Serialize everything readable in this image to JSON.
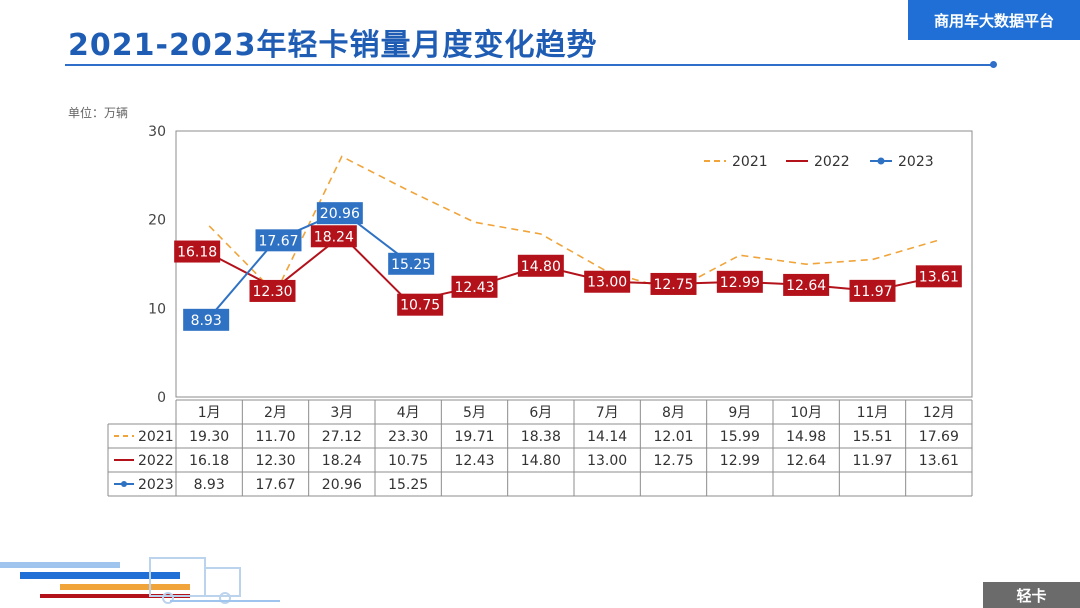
{
  "header": {
    "title": "2021-2023年轻卡销量月度变化趋势",
    "brand": "商用车大数据平台",
    "unit_label": "单位：万辆",
    "corner_label": "轻卡"
  },
  "colors": {
    "s2021": "#f0a43a",
    "s2022": "#b3121b",
    "s2023": "#2f72c4",
    "accent": "#1f5db5"
  },
  "chart_data": {
    "type": "line",
    "title": "",
    "xlabel": "",
    "ylabel": "",
    "ylim": [
      0,
      30
    ],
    "yticks": [
      "0",
      "10",
      "20",
      "30"
    ],
    "categories": [
      "1月",
      "2月",
      "3月",
      "4月",
      "5月",
      "6月",
      "7月",
      "8月",
      "9月",
      "10月",
      "11月",
      "12月"
    ],
    "legend_position": "top-right",
    "grid": false,
    "series": [
      {
        "name": "2021",
        "style": "dashed",
        "values": [
          19.3,
          11.7,
          27.12,
          23.3,
          19.71,
          18.38,
          14.14,
          12.01,
          15.99,
          14.98,
          15.51,
          17.69
        ],
        "labels": [
          "19.30",
          "11.70",
          "27.12",
          "23.30",
          "19.71",
          "18.38",
          "14.14",
          "12.01",
          "15.99",
          "14.98",
          "15.51",
          "17.69"
        ]
      },
      {
        "name": "2022",
        "style": "solid",
        "values": [
          16.18,
          12.3,
          18.24,
          10.75,
          12.43,
          14.8,
          13.0,
          12.75,
          12.99,
          12.64,
          11.97,
          13.61
        ],
        "labels": [
          "16.18",
          "12.30",
          "18.24",
          "10.75",
          "12.43",
          "14.80",
          "13.00",
          "12.75",
          "12.99",
          "12.64",
          "11.97",
          "13.61"
        ]
      },
      {
        "name": "2023",
        "style": "solid-marker",
        "values": [
          8.93,
          17.67,
          20.96,
          15.25,
          null,
          null,
          null,
          null,
          null,
          null,
          null,
          null
        ],
        "labels": [
          "8.93",
          "17.67",
          "20.96",
          "15.25",
          "",
          "",
          "",
          "",
          "",
          "",
          "",
          ""
        ]
      }
    ]
  }
}
